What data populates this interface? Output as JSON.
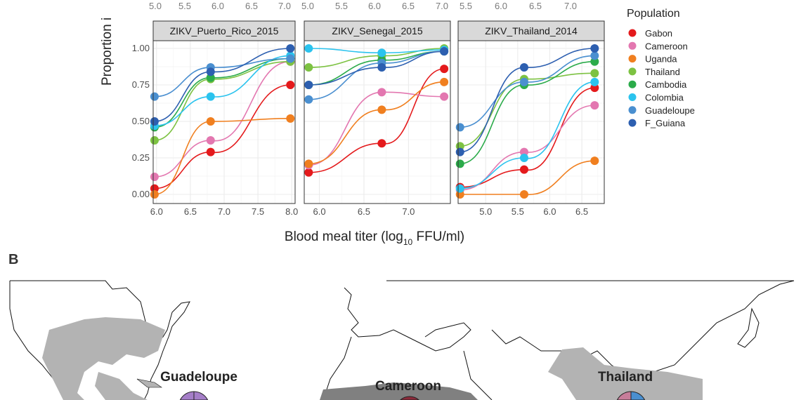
{
  "chart_data": {
    "type": "scatter",
    "ylabel": "Proportion i",
    "xlabel": "Blood meal titer (log10 FFU/ml)",
    "xlabel_parts": {
      "main": "Blood meal titer (log",
      "sub": "10",
      "rest": " FFU/ml)"
    },
    "y_ticks": [
      "0.00",
      "0.25",
      "0.50",
      "0.75",
      "1.00"
    ],
    "ylim": [
      0,
      1
    ],
    "grid": true,
    "legend": {
      "title": "Population",
      "placement": "right"
    },
    "populations": [
      {
        "name": "Gabon",
        "color": "#e41a1c"
      },
      {
        "name": "Cameroon",
        "color": "#e377b0"
      },
      {
        "name": "Uganda",
        "color": "#f07f1f"
      },
      {
        "name": "Thailand",
        "color": "#7dc242"
      },
      {
        "name": "Cambodia",
        "color": "#2bab4a"
      },
      {
        "name": "Colombia",
        "color": "#2bc3ee"
      },
      {
        "name": "Guadeloupe",
        "color": "#4a8fd0"
      },
      {
        "name": "F_Guiana",
        "color": "#2d5fb0"
      }
    ],
    "top_axis_ticks": [
      [
        "5.0",
        "5.5",
        "6.0",
        "6.5",
        "7.0"
      ],
      [
        "5.0",
        "5.5",
        "6.0",
        "6.5",
        "7.0"
      ],
      [
        "5.5",
        "6.0",
        "6.5",
        "7.0"
      ]
    ],
    "panels": [
      {
        "title": "ZIKV_Puerto_Rico_2015",
        "x_ticks": [
          "6.0",
          "6.5",
          "7.0",
          "7.5",
          "8.0"
        ],
        "xlim": [
          5.95,
          8.05
        ],
        "series": [
          {
            "name": "Gabon",
            "x": [
              5.97,
              6.8,
              7.98
            ],
            "y": [
              0.04,
              0.29,
              0.75
            ]
          },
          {
            "name": "Cameroon",
            "x": [
              5.97,
              6.8,
              7.98
            ],
            "y": [
              0.12,
              0.37,
              0.91
            ]
          },
          {
            "name": "Uganda",
            "x": [
              5.97,
              6.8,
              7.98
            ],
            "y": [
              0.0,
              0.5,
              0.52
            ]
          },
          {
            "name": "Thailand",
            "x": [
              5.97,
              6.8,
              7.98
            ],
            "y": [
              0.37,
              0.79,
              0.91
            ]
          },
          {
            "name": "Cambodia",
            "x": [
              5.97,
              6.8,
              7.98
            ],
            "y": [
              0.46,
              0.8,
              0.93
            ]
          },
          {
            "name": "Colombia",
            "x": [
              5.97,
              6.8,
              7.98
            ],
            "y": [
              0.47,
              0.67,
              0.95
            ]
          },
          {
            "name": "Guadeloupe",
            "x": [
              5.97,
              6.8,
              7.98
            ],
            "y": [
              0.67,
              0.87,
              0.93
            ]
          },
          {
            "name": "F_Guiana",
            "x": [
              5.97,
              6.8,
              7.98
            ],
            "y": [
              0.5,
              0.84,
              1.0
            ]
          }
        ]
      },
      {
        "title": "ZIKV_Senegal_2015",
        "x_ticks": [
          "6.0",
          "6.5",
          "7.0"
        ],
        "xlim": [
          5.83,
          7.47
        ],
        "series": [
          {
            "name": "Gabon",
            "x": [
              5.88,
              6.7,
              7.4
            ],
            "y": [
              0.15,
              0.35,
              0.86
            ]
          },
          {
            "name": "Cameroon",
            "x": [
              5.88,
              6.7,
              7.4
            ],
            "y": [
              0.2,
              0.7,
              0.67
            ]
          },
          {
            "name": "Uganda",
            "x": [
              5.88,
              6.7,
              7.4
            ],
            "y": [
              0.21,
              0.58,
              0.77
            ]
          },
          {
            "name": "Thailand",
            "x": [
              5.88,
              6.7,
              7.4
            ],
            "y": [
              0.87,
              0.95,
              1.0
            ]
          },
          {
            "name": "Cambodia",
            "x": [
              5.88,
              6.7,
              7.4
            ],
            "y": [
              0.75,
              0.92,
              0.98
            ]
          },
          {
            "name": "Colombia",
            "x": [
              5.88,
              6.7,
              7.4
            ],
            "y": [
              1.0,
              0.97,
              0.99
            ]
          },
          {
            "name": "Guadeloupe",
            "x": [
              5.88,
              6.7,
              7.4
            ],
            "y": [
              0.65,
              0.9,
              0.98
            ]
          },
          {
            "name": "F_Guiana",
            "x": [
              5.88,
              6.7,
              7.4
            ],
            "y": [
              0.75,
              0.87,
              0.98
            ]
          }
        ]
      },
      {
        "title": "ZIKV_Thailand_2014",
        "x_ticks": [
          "5.0",
          "5.5",
          "6.0",
          "6.5"
        ],
        "xlim": [
          4.57,
          6.85
        ],
        "series": [
          {
            "name": "Gabon",
            "x": [
              4.6,
              5.6,
              6.7
            ],
            "y": [
              0.05,
              0.17,
              0.73
            ]
          },
          {
            "name": "Cameroon",
            "x": [
              4.6,
              5.6,
              6.7
            ],
            "y": [
              0.03,
              0.29,
              0.61
            ]
          },
          {
            "name": "Uganda",
            "x": [
              4.6,
              5.6,
              6.7
            ],
            "y": [
              0.0,
              0.0,
              0.23
            ]
          },
          {
            "name": "Thailand",
            "x": [
              4.6,
              5.6,
              6.7
            ],
            "y": [
              0.33,
              0.79,
              0.83
            ]
          },
          {
            "name": "Cambodia",
            "x": [
              4.6,
              5.6,
              6.7
            ],
            "y": [
              0.21,
              0.75,
              0.91
            ]
          },
          {
            "name": "Colombia",
            "x": [
              4.6,
              5.6,
              6.7
            ],
            "y": [
              0.04,
              0.25,
              0.77
            ]
          },
          {
            "name": "Guadeloupe",
            "x": [
              4.6,
              5.6,
              6.7
            ],
            "y": [
              0.46,
              0.77,
              0.95
            ]
          },
          {
            "name": "F_Guiana",
            "x": [
              4.6,
              5.6,
              6.7
            ],
            "y": [
              0.29,
              0.87,
              1.0
            ]
          }
        ]
      }
    ]
  },
  "panel_b": {
    "label": "B",
    "map_labels": [
      "Guadeloupe",
      "Cameroon",
      "Thailand"
    ],
    "range_color": "#b3b3b3",
    "range_color_dark": "#808080"
  }
}
